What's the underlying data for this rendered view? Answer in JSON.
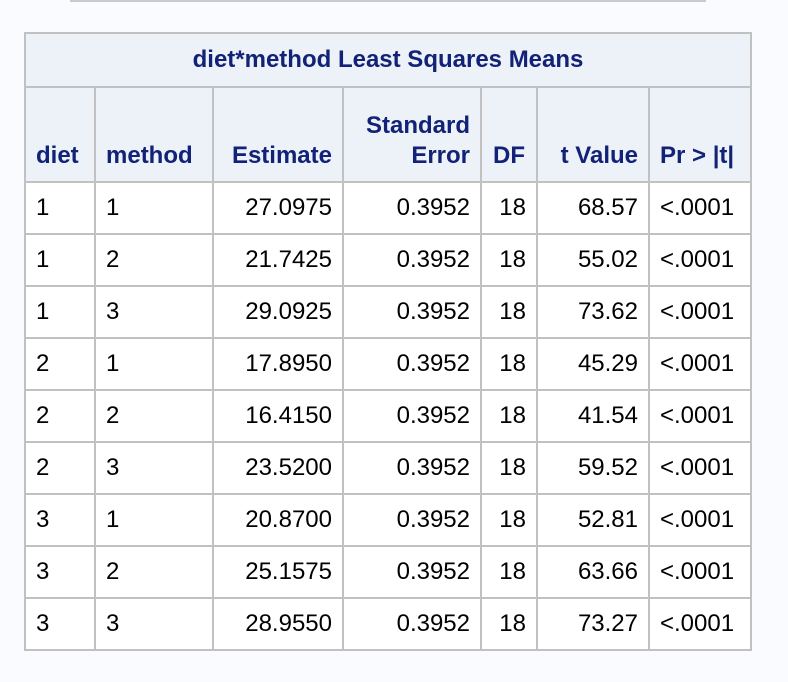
{
  "table": {
    "title": "diet*method Least Squares Means",
    "columns": [
      {
        "label_line1": "",
        "label_line2": "diet"
      },
      {
        "label_line1": "",
        "label_line2": "method"
      },
      {
        "label_line1": "",
        "label_line2": "Estimate"
      },
      {
        "label_line1": "Standard",
        "label_line2": "Error"
      },
      {
        "label_line1": "",
        "label_line2": "DF"
      },
      {
        "label_line1": "",
        "label_line2": "t Value"
      },
      {
        "label_line1": "",
        "label_line2": "Pr > |t|"
      }
    ],
    "rows": [
      [
        "1",
        "1",
        "27.0975",
        "0.3952",
        "18",
        "68.57",
        "<.0001"
      ],
      [
        "1",
        "2",
        "21.7425",
        "0.3952",
        "18",
        "55.02",
        "<.0001"
      ],
      [
        "1",
        "3",
        "29.0925",
        "0.3952",
        "18",
        "73.62",
        "<.0001"
      ],
      [
        "2",
        "1",
        "17.8950",
        "0.3952",
        "18",
        "45.29",
        "<.0001"
      ],
      [
        "2",
        "2",
        "16.4150",
        "0.3952",
        "18",
        "41.54",
        "<.0001"
      ],
      [
        "2",
        "3",
        "23.5200",
        "0.3952",
        "18",
        "59.52",
        "<.0001"
      ],
      [
        "3",
        "1",
        "20.8700",
        "0.3952",
        "18",
        "52.81",
        "<.0001"
      ],
      [
        "3",
        "2",
        "25.1575",
        "0.3952",
        "18",
        "63.66",
        "<.0001"
      ],
      [
        "3",
        "3",
        "28.9550",
        "0.3952",
        "18",
        "73.27",
        "<.0001"
      ]
    ]
  },
  "colors": {
    "header_background": "#edf2f9",
    "header_text": "#112277",
    "border": "#c1c1c1",
    "cell_background": "#ffffff"
  }
}
